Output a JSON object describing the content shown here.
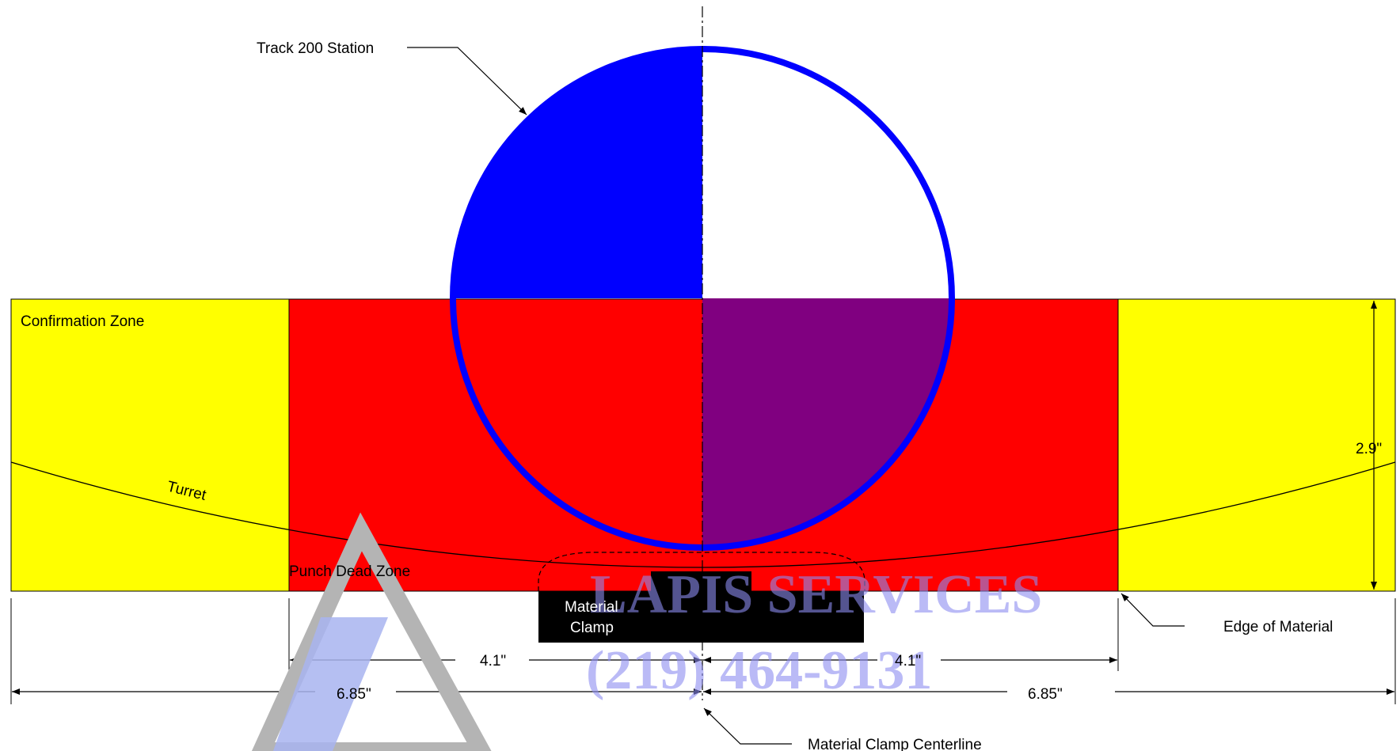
{
  "labels": {
    "track_station": "Track 200 Station",
    "confirmation_zone": "Confirmation Zone",
    "turret": "Turret",
    "punch_dead_zone": "Punch Dead Zone",
    "material_clamp_line1": "Material",
    "material_clamp_line2": "Clamp",
    "edge_of_material": "Edge of Material",
    "clamp_centerline": "Material Clamp Centerline"
  },
  "dimensions": {
    "height": "2.9\"",
    "dead_zone_left": "4.1\"",
    "dead_zone_right": "4.1\"",
    "overall_left": "6.85\"",
    "overall_right": "6.85\""
  },
  "watermark": {
    "company": "LAPIS SERVICES",
    "phone": "(219) 464-9131"
  },
  "colors": {
    "confirmation_zone": "#ffff00",
    "dead_zone": "#ff0000",
    "station_fill": "#0000ff",
    "overlap": "#800080",
    "clamp": "#000000",
    "watermark": "#8c8cf0"
  }
}
